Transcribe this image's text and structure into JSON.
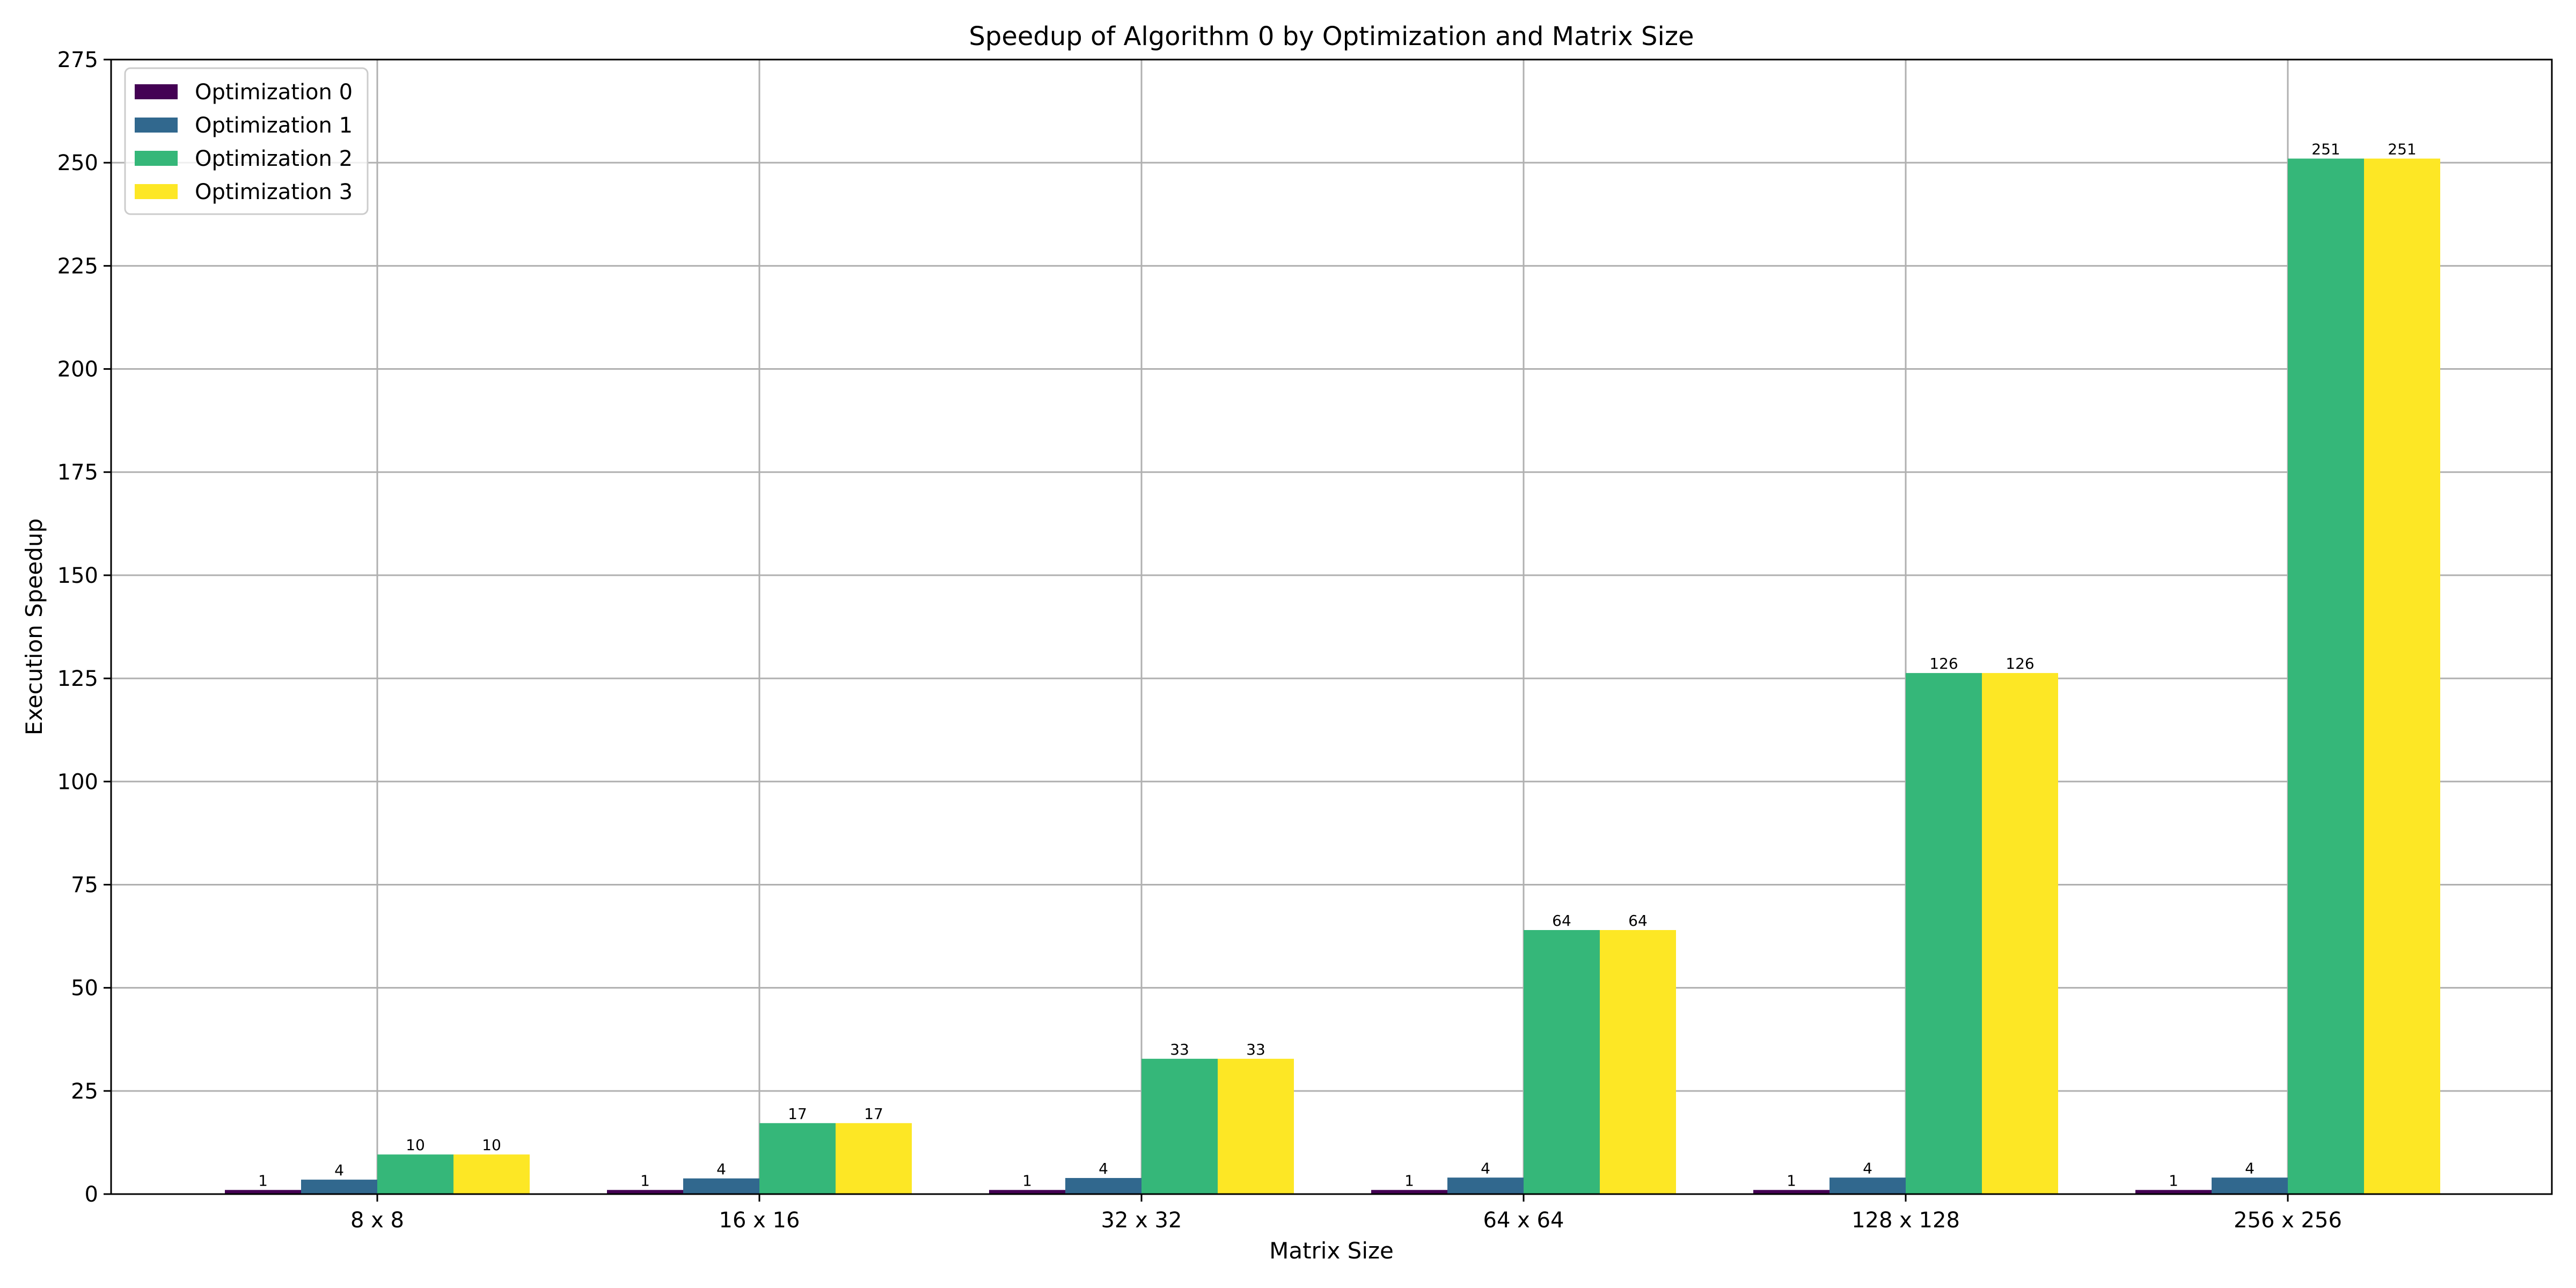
{
  "chart_data": {
    "type": "bar",
    "title": "Speedup of Algorithm 0 by Optimization and Matrix Size",
    "xlabel": "Matrix Size",
    "ylabel": "Execution Speedup",
    "categories": [
      "8 x 8",
      "16 x 16",
      "32 x 32",
      "64 x 64",
      "128 x 128",
      "256 x 256"
    ],
    "ylim": [
      0,
      275
    ],
    "yticks": [
      0,
      25,
      50,
      75,
      100,
      125,
      150,
      175,
      200,
      225,
      250,
      275
    ],
    "grid": true,
    "legend_position": "top-left",
    "series": [
      {
        "name": "Optimization 0",
        "color": "#440154",
        "values": [
          1,
          1,
          1,
          1,
          1,
          1
        ],
        "labels": [
          "1",
          "1",
          "1",
          "1",
          "1",
          "1"
        ]
      },
      {
        "name": "Optimization 1",
        "color": "#31688e",
        "values": [
          3.5,
          3.8,
          3.9,
          4,
          4,
          4
        ],
        "labels": [
          "4",
          "4",
          "4",
          "4",
          "4",
          "4"
        ]
      },
      {
        "name": "Optimization 2",
        "color": "#35b779",
        "values": [
          9.6,
          17.2,
          32.8,
          64,
          126.3,
          251
        ],
        "labels": [
          "10",
          "17",
          "33",
          "64",
          "126",
          "251"
        ]
      },
      {
        "name": "Optimization 3",
        "color": "#fde725",
        "values": [
          9.6,
          17.2,
          32.8,
          64,
          126.3,
          251
        ],
        "labels": [
          "10",
          "17",
          "33",
          "64",
          "126",
          "251"
        ]
      }
    ]
  }
}
